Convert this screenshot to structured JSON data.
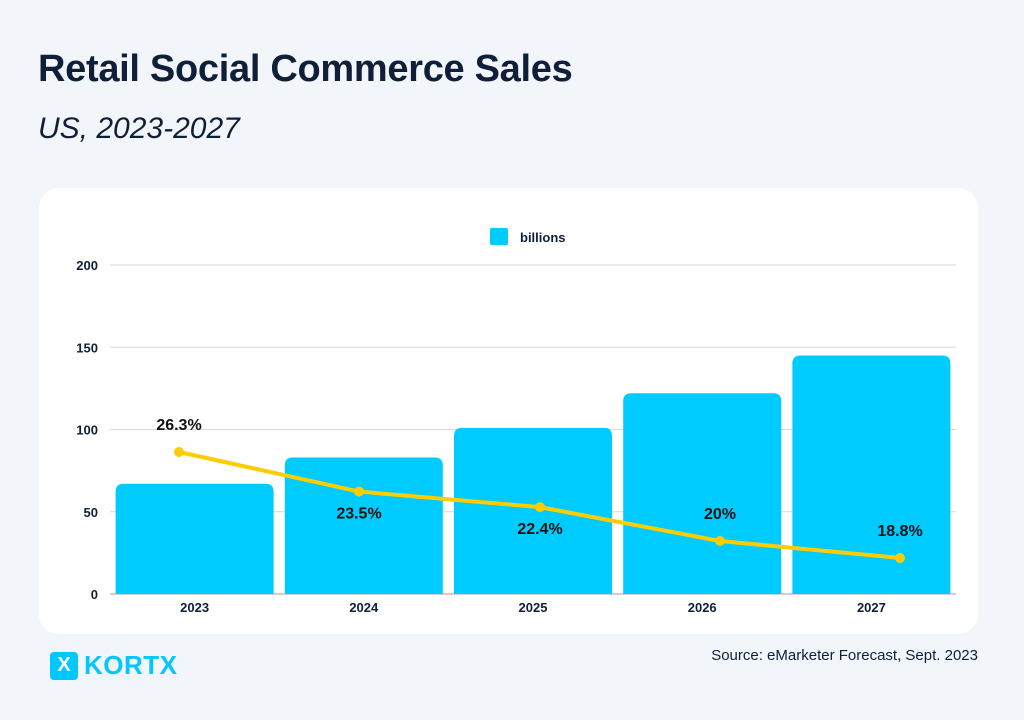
{
  "header": {
    "title": "Retail Social Commerce Sales",
    "subtitle": "US, 2023-2027"
  },
  "footer": {
    "source": "Source: eMarketer Forecast, Sept. 2023",
    "logo_text": "KORTX",
    "logo_mark": "X"
  },
  "chart_data": {
    "type": "bar+line",
    "categories": [
      "2023",
      "2024",
      "2025",
      "2026",
      "2027"
    ],
    "series": [
      {
        "name": "billions",
        "type": "bar",
        "values": [
          67,
          83,
          101,
          122,
          145
        ],
        "color": "#00cbff"
      },
      {
        "type": "line",
        "values": [
          26.3,
          23.5,
          22.4,
          20,
          18.8
        ],
        "labels": [
          "26.3%",
          "23.5%",
          "22.4%",
          "20%",
          "18.8%"
        ],
        "color": "#ffcc00"
      }
    ],
    "ylim": [
      0,
      200
    ],
    "yticks": [
      "0",
      "50",
      "100",
      "150",
      "200"
    ],
    "grid": true,
    "legend": "top-center"
  }
}
